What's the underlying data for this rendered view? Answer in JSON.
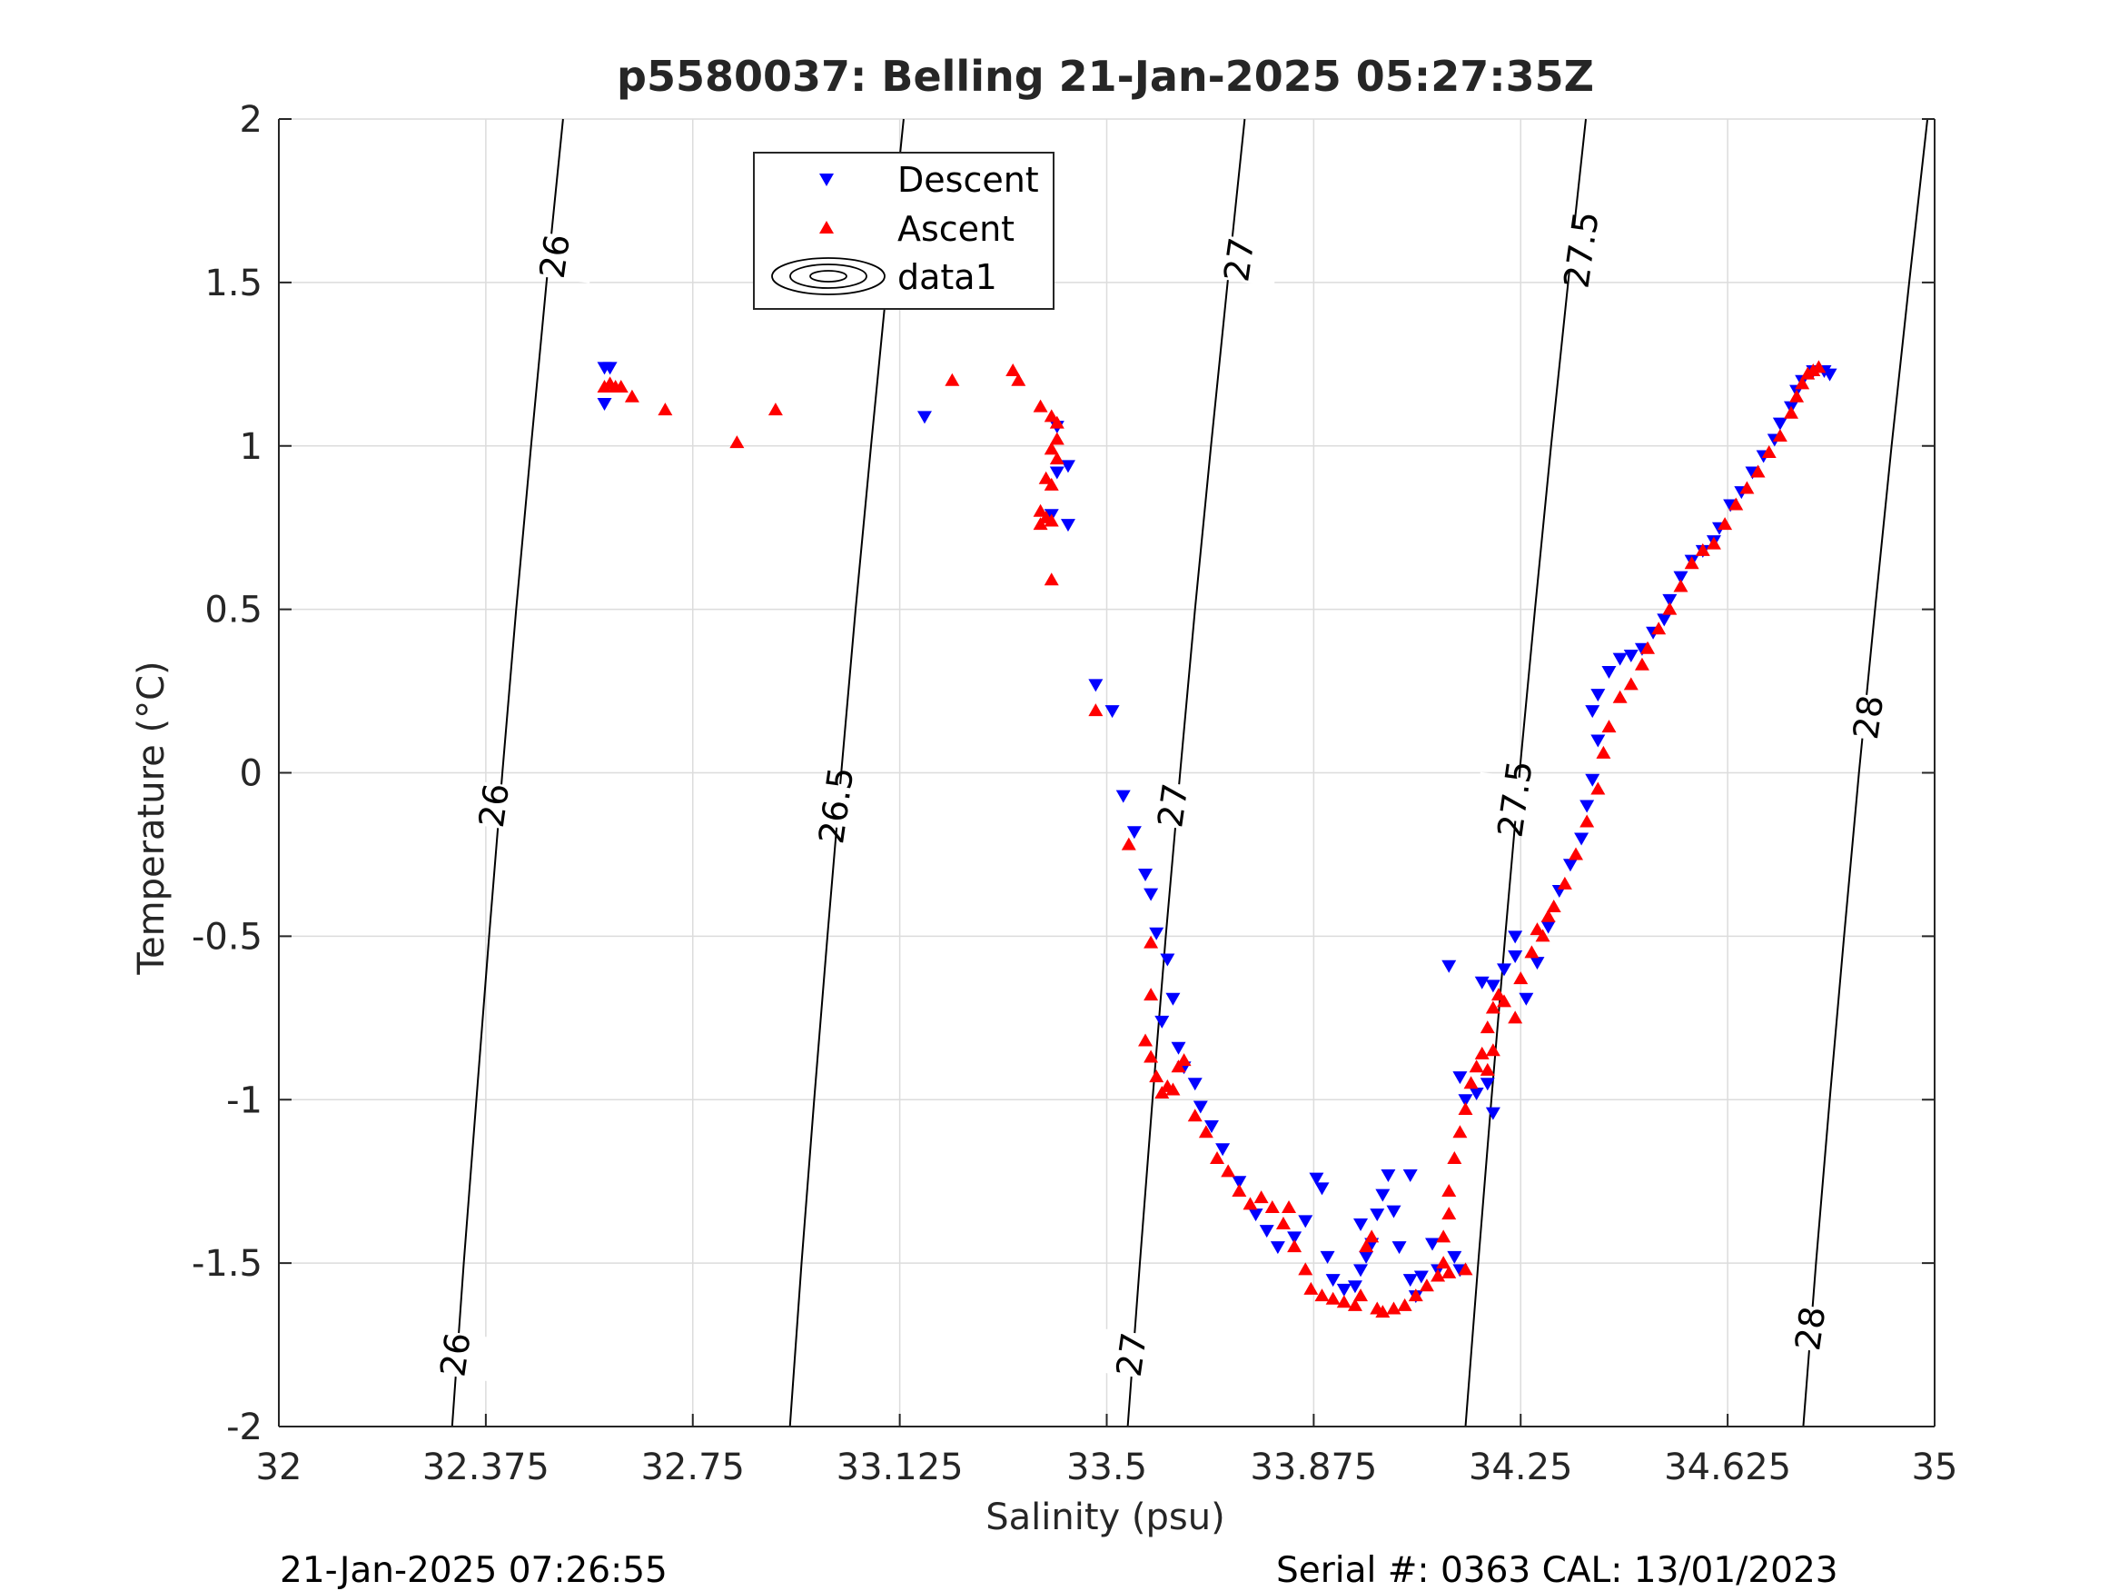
{
  "footer": {
    "left": "21-Jan-2025 07:26:55",
    "right": "Serial #: 0363  CAL: 13/01/2023"
  },
  "chart_data": {
    "type": "scatter",
    "title": "p5580037: Belling 21-Jan-2025 05:27:35Z",
    "xlabel": "Salinity (psu)",
    "ylabel": "Temperature (°C)",
    "xlim": [
      32,
      35
    ],
    "ylim": [
      -2,
      2
    ],
    "x_ticks": [
      32,
      32.375,
      32.75,
      33.125,
      33.5,
      33.875,
      34.25,
      34.625,
      35
    ],
    "x_tick_labels": [
      "32",
      "32.375",
      "32.75",
      "33.125",
      "33.5",
      "33.875",
      "34.25",
      "34.625",
      "35"
    ],
    "y_ticks": [
      -2,
      -1.5,
      -1,
      -0.5,
      0,
      0.5,
      1,
      1.5,
      2
    ],
    "y_tick_labels": [
      "-2",
      "-1.5",
      "-1",
      "-0.5",
      "0",
      "0.5",
      "1",
      "1.5",
      "2"
    ],
    "grid": true,
    "legend": {
      "position": "top-center",
      "entries": [
        "Descent",
        "Ascent",
        "data1"
      ]
    },
    "colors": {
      "descent": "#0000ff",
      "ascent": "#ff0000",
      "contour": "#000000",
      "grid": "#dcdcdc"
    },
    "density_contours": [
      {
        "level": "26",
        "points": [
          [
            32.314,
            -2
          ],
          [
            32.335,
            -1.5
          ],
          [
            32.358,
            -1
          ],
          [
            32.381,
            -0.5
          ],
          [
            32.405,
            0
          ],
          [
            32.43,
            0.5
          ],
          [
            32.457,
            1
          ],
          [
            32.485,
            1.5
          ],
          [
            32.515,
            2
          ]
        ],
        "labels": [
          {
            "x": 32.32,
            "y": -1.78
          },
          {
            "x": 32.39,
            "y": -0.1
          },
          {
            "x": 32.5,
            "y": 1.58
          }
        ]
      },
      {
        "level": "26.5",
        "points": [
          [
            32.926,
            -2
          ],
          [
            32.947,
            -1.5
          ],
          [
            32.97,
            -1
          ],
          [
            32.994,
            -0.5
          ],
          [
            33.019,
            0
          ],
          [
            33.045,
            0.5
          ],
          [
            33.073,
            1
          ],
          [
            33.102,
            1.5
          ],
          [
            33.132,
            2
          ]
        ],
        "labels": [
          {
            "x": 33.01,
            "y": -0.1
          },
          {
            "x": 33.12,
            "y": 1.57
          }
        ]
      },
      {
        "level": "27",
        "points": [
          [
            33.538,
            -2
          ],
          [
            33.56,
            -1.5
          ],
          [
            33.583,
            -1
          ],
          [
            33.607,
            -0.5
          ],
          [
            33.633,
            0
          ],
          [
            33.66,
            0.5
          ],
          [
            33.689,
            1
          ],
          [
            33.719,
            1.5
          ],
          [
            33.75,
            2
          ]
        ],
        "labels": [
          {
            "x": 33.545,
            "y": -1.78
          },
          {
            "x": 33.62,
            "y": -0.1
          },
          {
            "x": 33.74,
            "y": 1.57
          }
        ]
      },
      {
        "level": "27.5",
        "points": [
          [
            34.15,
            -2
          ],
          [
            34.173,
            -1.5
          ],
          [
            34.197,
            -1
          ],
          [
            34.222,
            -0.5
          ],
          [
            34.248,
            0
          ],
          [
            34.276,
            0.5
          ],
          [
            34.305,
            1
          ],
          [
            34.336,
            1.5
          ],
          [
            34.368,
            2
          ]
        ],
        "labels": [
          {
            "x": 34.24,
            "y": -0.08
          },
          {
            "x": 34.36,
            "y": 1.6
          }
        ]
      },
      {
        "level": "28",
        "points": [
          [
            34.762,
            -2
          ],
          [
            34.785,
            -1.5
          ],
          [
            34.81,
            -1
          ],
          [
            34.836,
            -0.5
          ],
          [
            34.863,
            0
          ],
          [
            34.892,
            0.5
          ],
          [
            34.922,
            1
          ],
          [
            34.954,
            1.5
          ],
          [
            34.987,
            2
          ]
        ],
        "labels": [
          {
            "x": 34.775,
            "y": -1.7
          },
          {
            "x": 34.88,
            "y": 0.17
          }
        ]
      }
    ],
    "series": [
      {
        "name": "Descent",
        "marker": "triangle-down",
        "points": [
          [
            32.59,
            1.24
          ],
          [
            32.6,
            1.24
          ],
          [
            32.59,
            1.13
          ],
          [
            33.17,
            1.09
          ],
          [
            33.41,
            1.06
          ],
          [
            33.43,
            0.94
          ],
          [
            33.43,
            0.76
          ],
          [
            33.41,
            0.92
          ],
          [
            33.4,
            0.79
          ],
          [
            33.48,
            0.27
          ],
          [
            33.51,
            0.19
          ],
          [
            33.53,
            -0.07
          ],
          [
            33.55,
            -0.18
          ],
          [
            33.57,
            -0.31
          ],
          [
            33.58,
            -0.37
          ],
          [
            33.59,
            -0.49
          ],
          [
            33.61,
            -0.57
          ],
          [
            33.62,
            -0.69
          ],
          [
            33.6,
            -0.76
          ],
          [
            33.63,
            -0.84
          ],
          [
            33.64,
            -0.9
          ],
          [
            33.66,
            -0.95
          ],
          [
            33.67,
            -1.02
          ],
          [
            33.69,
            -1.08
          ],
          [
            33.71,
            -1.15
          ],
          [
            33.74,
            -1.25
          ],
          [
            33.77,
            -1.35
          ],
          [
            33.79,
            -1.4
          ],
          [
            33.81,
            -1.45
          ],
          [
            33.84,
            -1.42
          ],
          [
            33.86,
            -1.37
          ],
          [
            33.88,
            -1.24
          ],
          [
            33.89,
            -1.27
          ],
          [
            33.9,
            -1.48
          ],
          [
            33.91,
            -1.55
          ],
          [
            33.93,
            -1.58
          ],
          [
            33.95,
            -1.57
          ],
          [
            33.96,
            -1.52
          ],
          [
            33.97,
            -1.48
          ],
          [
            33.96,
            -1.38
          ],
          [
            33.98,
            -1.44
          ],
          [
            33.99,
            -1.35
          ],
          [
            34.0,
            -1.29
          ],
          [
            34.01,
            -1.23
          ],
          [
            34.02,
            -1.34
          ],
          [
            34.03,
            -1.45
          ],
          [
            34.05,
            -1.55
          ],
          [
            34.06,
            -1.6
          ],
          [
            34.07,
            -1.54
          ],
          [
            34.05,
            -1.23
          ],
          [
            34.09,
            -1.44
          ],
          [
            34.1,
            -1.52
          ],
          [
            34.13,
            -1.48
          ],
          [
            34.14,
            -1.52
          ],
          [
            34.12,
            -0.59
          ],
          [
            34.14,
            -0.93
          ],
          [
            34.15,
            -1.0
          ],
          [
            34.17,
            -0.98
          ],
          [
            34.19,
            -0.95
          ],
          [
            34.2,
            -1.04
          ],
          [
            34.18,
            -0.64
          ],
          [
            34.2,
            -0.65
          ],
          [
            34.22,
            -0.6
          ],
          [
            34.24,
            -0.5
          ],
          [
            34.24,
            -0.56
          ],
          [
            34.26,
            -0.69
          ],
          [
            34.28,
            -0.58
          ],
          [
            34.3,
            -0.47
          ],
          [
            34.32,
            -0.36
          ],
          [
            34.34,
            -0.28
          ],
          [
            34.36,
            -0.2
          ],
          [
            34.37,
            -0.1
          ],
          [
            34.38,
            -0.02
          ],
          [
            34.39,
            0.1
          ],
          [
            34.38,
            0.19
          ],
          [
            34.39,
            0.24
          ],
          [
            34.41,
            0.31
          ],
          [
            34.43,
            0.35
          ],
          [
            34.45,
            0.36
          ],
          [
            34.47,
            0.38
          ],
          [
            34.49,
            0.43
          ],
          [
            34.51,
            0.47
          ],
          [
            34.52,
            0.53
          ],
          [
            34.54,
            0.6
          ],
          [
            34.56,
            0.65
          ],
          [
            34.58,
            0.68
          ],
          [
            34.6,
            0.71
          ],
          [
            34.61,
            0.75
          ],
          [
            34.63,
            0.82
          ],
          [
            34.65,
            0.86
          ],
          [
            34.67,
            0.92
          ],
          [
            34.69,
            0.97
          ],
          [
            34.71,
            1.02
          ],
          [
            34.72,
            1.07
          ],
          [
            34.74,
            1.12
          ],
          [
            34.75,
            1.17
          ],
          [
            34.76,
            1.2
          ],
          [
            34.78,
            1.23
          ],
          [
            34.8,
            1.23
          ],
          [
            34.81,
            1.22
          ]
        ]
      },
      {
        "name": "Ascent",
        "marker": "triangle-up",
        "points": [
          [
            32.59,
            1.18
          ],
          [
            32.6,
            1.19
          ],
          [
            32.61,
            1.18
          ],
          [
            32.62,
            1.18
          ],
          [
            32.64,
            1.15
          ],
          [
            32.7,
            1.11
          ],
          [
            32.83,
            1.01
          ],
          [
            32.9,
            1.11
          ],
          [
            33.22,
            1.2
          ],
          [
            33.33,
            1.23
          ],
          [
            33.34,
            1.2
          ],
          [
            33.38,
            1.12
          ],
          [
            33.4,
            1.09
          ],
          [
            33.41,
            1.07
          ],
          [
            33.41,
            1.02
          ],
          [
            33.4,
            0.99
          ],
          [
            33.41,
            0.96
          ],
          [
            33.39,
            0.9
          ],
          [
            33.4,
            0.88
          ],
          [
            33.38,
            0.8
          ],
          [
            33.38,
            0.76
          ],
          [
            33.39,
            0.78
          ],
          [
            33.4,
            0.77
          ],
          [
            33.4,
            0.59
          ],
          [
            33.48,
            0.19
          ],
          [
            33.54,
            -0.22
          ],
          [
            33.58,
            -0.52
          ],
          [
            33.58,
            -0.68
          ],
          [
            33.57,
            -0.82
          ],
          [
            33.58,
            -0.87
          ],
          [
            33.59,
            -0.93
          ],
          [
            33.6,
            -0.98
          ],
          [
            33.61,
            -0.96
          ],
          [
            33.63,
            -0.9
          ],
          [
            33.64,
            -0.88
          ],
          [
            33.62,
            -0.97
          ],
          [
            33.66,
            -1.05
          ],
          [
            33.68,
            -1.1
          ],
          [
            33.7,
            -1.18
          ],
          [
            33.72,
            -1.22
          ],
          [
            33.74,
            -1.28
          ],
          [
            33.76,
            -1.32
          ],
          [
            33.78,
            -1.3
          ],
          [
            33.8,
            -1.33
          ],
          [
            33.82,
            -1.38
          ],
          [
            33.83,
            -1.33
          ],
          [
            33.84,
            -1.45
          ],
          [
            33.86,
            -1.52
          ],
          [
            33.87,
            -1.58
          ],
          [
            33.89,
            -1.6
          ],
          [
            33.91,
            -1.61
          ],
          [
            33.93,
            -1.62
          ],
          [
            33.95,
            -1.63
          ],
          [
            33.96,
            -1.6
          ],
          [
            33.97,
            -1.45
          ],
          [
            33.98,
            -1.42
          ],
          [
            33.99,
            -1.64
          ],
          [
            34.0,
            -1.65
          ],
          [
            34.02,
            -1.64
          ],
          [
            34.04,
            -1.63
          ],
          [
            34.06,
            -1.6
          ],
          [
            34.08,
            -1.57
          ],
          [
            34.1,
            -1.54
          ],
          [
            34.12,
            -1.53
          ],
          [
            34.15,
            -1.52
          ],
          [
            34.11,
            -1.5
          ],
          [
            34.11,
            -1.42
          ],
          [
            34.12,
            -1.35
          ],
          [
            34.12,
            -1.28
          ],
          [
            34.13,
            -1.18
          ],
          [
            34.14,
            -1.1
          ],
          [
            34.15,
            -1.03
          ],
          [
            34.16,
            -0.95
          ],
          [
            34.17,
            -0.9
          ],
          [
            34.18,
            -0.86
          ],
          [
            34.19,
            -0.91
          ],
          [
            34.2,
            -0.85
          ],
          [
            34.19,
            -0.78
          ],
          [
            34.2,
            -0.72
          ],
          [
            34.21,
            -0.68
          ],
          [
            34.22,
            -0.7
          ],
          [
            34.24,
            -0.75
          ],
          [
            34.25,
            -0.63
          ],
          [
            34.27,
            -0.55
          ],
          [
            34.28,
            -0.48
          ],
          [
            34.29,
            -0.5
          ],
          [
            34.3,
            -0.44
          ],
          [
            34.31,
            -0.41
          ],
          [
            34.33,
            -0.34
          ],
          [
            34.35,
            -0.25
          ],
          [
            34.37,
            -0.15
          ],
          [
            34.39,
            -0.05
          ],
          [
            34.4,
            0.06
          ],
          [
            34.41,
            0.14
          ],
          [
            34.43,
            0.23
          ],
          [
            34.45,
            0.27
          ],
          [
            34.47,
            0.33
          ],
          [
            34.48,
            0.38
          ],
          [
            34.5,
            0.44
          ],
          [
            34.52,
            0.5
          ],
          [
            34.54,
            0.57
          ],
          [
            34.56,
            0.64
          ],
          [
            34.58,
            0.68
          ],
          [
            34.6,
            0.7
          ],
          [
            34.62,
            0.76
          ],
          [
            34.64,
            0.82
          ],
          [
            34.66,
            0.87
          ],
          [
            34.68,
            0.92
          ],
          [
            34.7,
            0.98
          ],
          [
            34.72,
            1.03
          ],
          [
            34.74,
            1.1
          ],
          [
            34.75,
            1.15
          ],
          [
            34.76,
            1.19
          ],
          [
            34.77,
            1.22
          ],
          [
            34.78,
            1.23
          ],
          [
            34.79,
            1.24
          ]
        ]
      }
    ]
  }
}
